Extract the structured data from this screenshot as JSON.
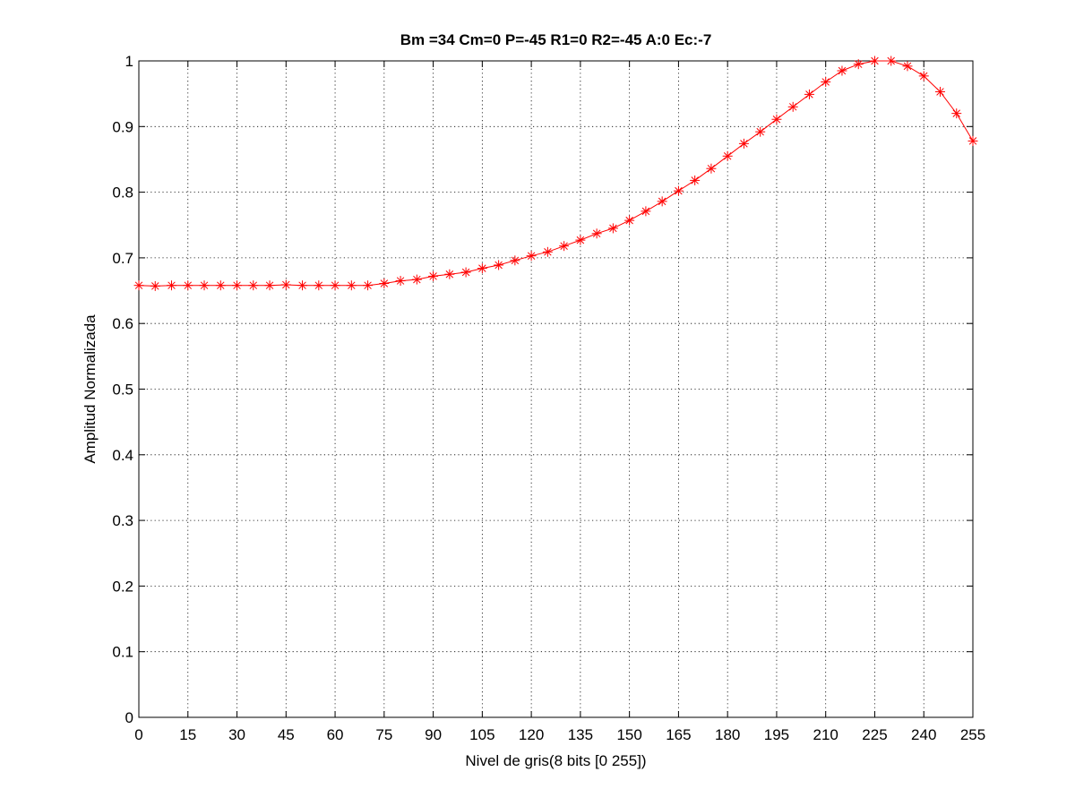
{
  "chart_data": {
    "type": "line",
    "title": "Bm =34  Cm=0  P=-45  R1=0  R2=-45  A:0  Ec:-7",
    "xlabel": "Nivel de gris(8 bits [0 255])",
    "ylabel": "Amplitud Normalizada",
    "xlim": [
      0,
      255
    ],
    "ylim": [
      0,
      1
    ],
    "xticks": [
      0,
      15,
      30,
      45,
      60,
      75,
      90,
      105,
      120,
      135,
      150,
      165,
      180,
      195,
      210,
      225,
      240,
      255
    ],
    "yticks": [
      0,
      0.1,
      0.2,
      0.3,
      0.4,
      0.5,
      0.6,
      0.7,
      0.8,
      0.9,
      1
    ],
    "ytick_labels": [
      "0",
      "0.1",
      "0.2",
      "0.3",
      "0.4",
      "0.5",
      "0.6",
      "0.7",
      "0.8",
      "0.9",
      "1"
    ],
    "grid": true,
    "legend": "none",
    "series": [
      {
        "color": "#ff0000",
        "marker": "asterisk",
        "x": [
          0,
          5,
          10,
          15,
          20,
          25,
          30,
          35,
          40,
          45,
          50,
          55,
          60,
          65,
          70,
          75,
          80,
          85,
          90,
          95,
          100,
          105,
          110,
          115,
          120,
          125,
          130,
          135,
          140,
          145,
          150,
          155,
          160,
          165,
          170,
          175,
          180,
          185,
          190,
          195,
          200,
          205,
          210,
          215,
          220,
          225,
          230,
          235,
          240,
          245,
          250,
          255
        ],
        "y": [
          0.658,
          0.657,
          0.658,
          0.658,
          0.658,
          0.658,
          0.658,
          0.658,
          0.658,
          0.659,
          0.658,
          0.658,
          0.658,
          0.658,
          0.658,
          0.661,
          0.665,
          0.667,
          0.672,
          0.675,
          0.678,
          0.684,
          0.689,
          0.696,
          0.703,
          0.709,
          0.718,
          0.727,
          0.737,
          0.745,
          0.757,
          0.771,
          0.786,
          0.802,
          0.818,
          0.836,
          0.855,
          0.874,
          0.892,
          0.911,
          0.93,
          0.949,
          0.968,
          0.985,
          0.995,
          1.0,
          1.0,
          0.992,
          0.977,
          0.953,
          0.92,
          0.878
        ]
      }
    ]
  }
}
